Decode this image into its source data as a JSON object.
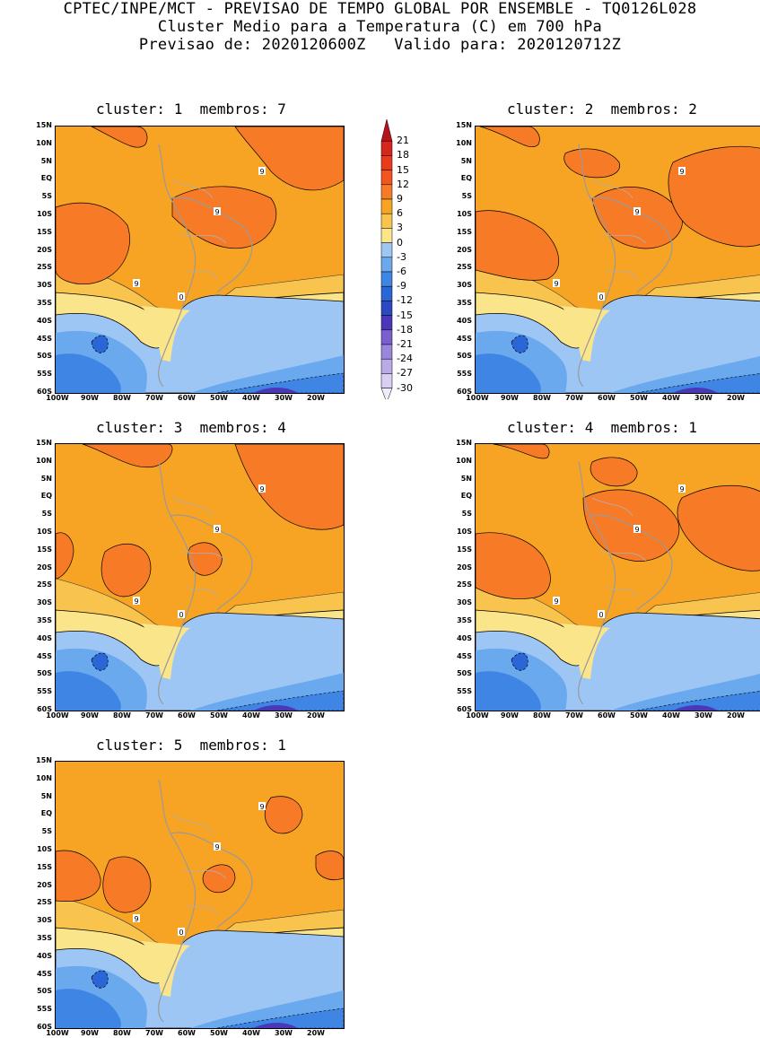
{
  "header": {
    "line1": "CPTEC/INPE/MCT - PREVISAO DE TEMPO GLOBAL POR ENSEMBLE - TQ0126L028",
    "line2": "Cluster Medio para a Temperatura (C) em 700 hPa",
    "line3": "Previsao de: 2020120600Z   Valido para: 2020120712Z"
  },
  "panels": [
    {
      "title": "cluster: 1  membros: 7"
    },
    {
      "title": "cluster: 2  membros: 2"
    },
    {
      "title": "cluster: 3  membros: 4"
    },
    {
      "title": "cluster: 4  membros: 1"
    },
    {
      "title": "cluster: 5  membros: 1"
    }
  ],
  "axes": {
    "lat_labels": [
      "15N",
      "10N",
      "5N",
      "EQ",
      "5S",
      "10S",
      "15S",
      "20S",
      "25S",
      "30S",
      "35S",
      "40S",
      "45S",
      "50S",
      "55S",
      "60S"
    ],
    "lon_labels": [
      "100W",
      "90W",
      "80W",
      "70W",
      "60W",
      "50W",
      "40W",
      "30W",
      "20W"
    ]
  },
  "colorbar": {
    "labels": [
      "21",
      "18",
      "15",
      "12",
      "9",
      "6",
      "3",
      "0",
      "-3",
      "-6",
      "-9",
      "-12",
      "-15",
      "-18",
      "-21",
      "-24",
      "-27",
      "-30"
    ],
    "colors": [
      "#b8141e",
      "#d8261e",
      "#ea3a1c",
      "#f4541e",
      "#f77b26",
      "#f7a323",
      "#f8c44d",
      "#fbe58a",
      "#9ec6f5",
      "#6aa9ee",
      "#3f86e4",
      "#2a66d6",
      "#2c49c2",
      "#4a38b8",
      "#7a5fcf",
      "#9a86dd",
      "#b9aae8",
      "#d8cff3",
      "#f0ecfa"
    ]
  },
  "contour_labels": [
    "9",
    "0"
  ]
}
